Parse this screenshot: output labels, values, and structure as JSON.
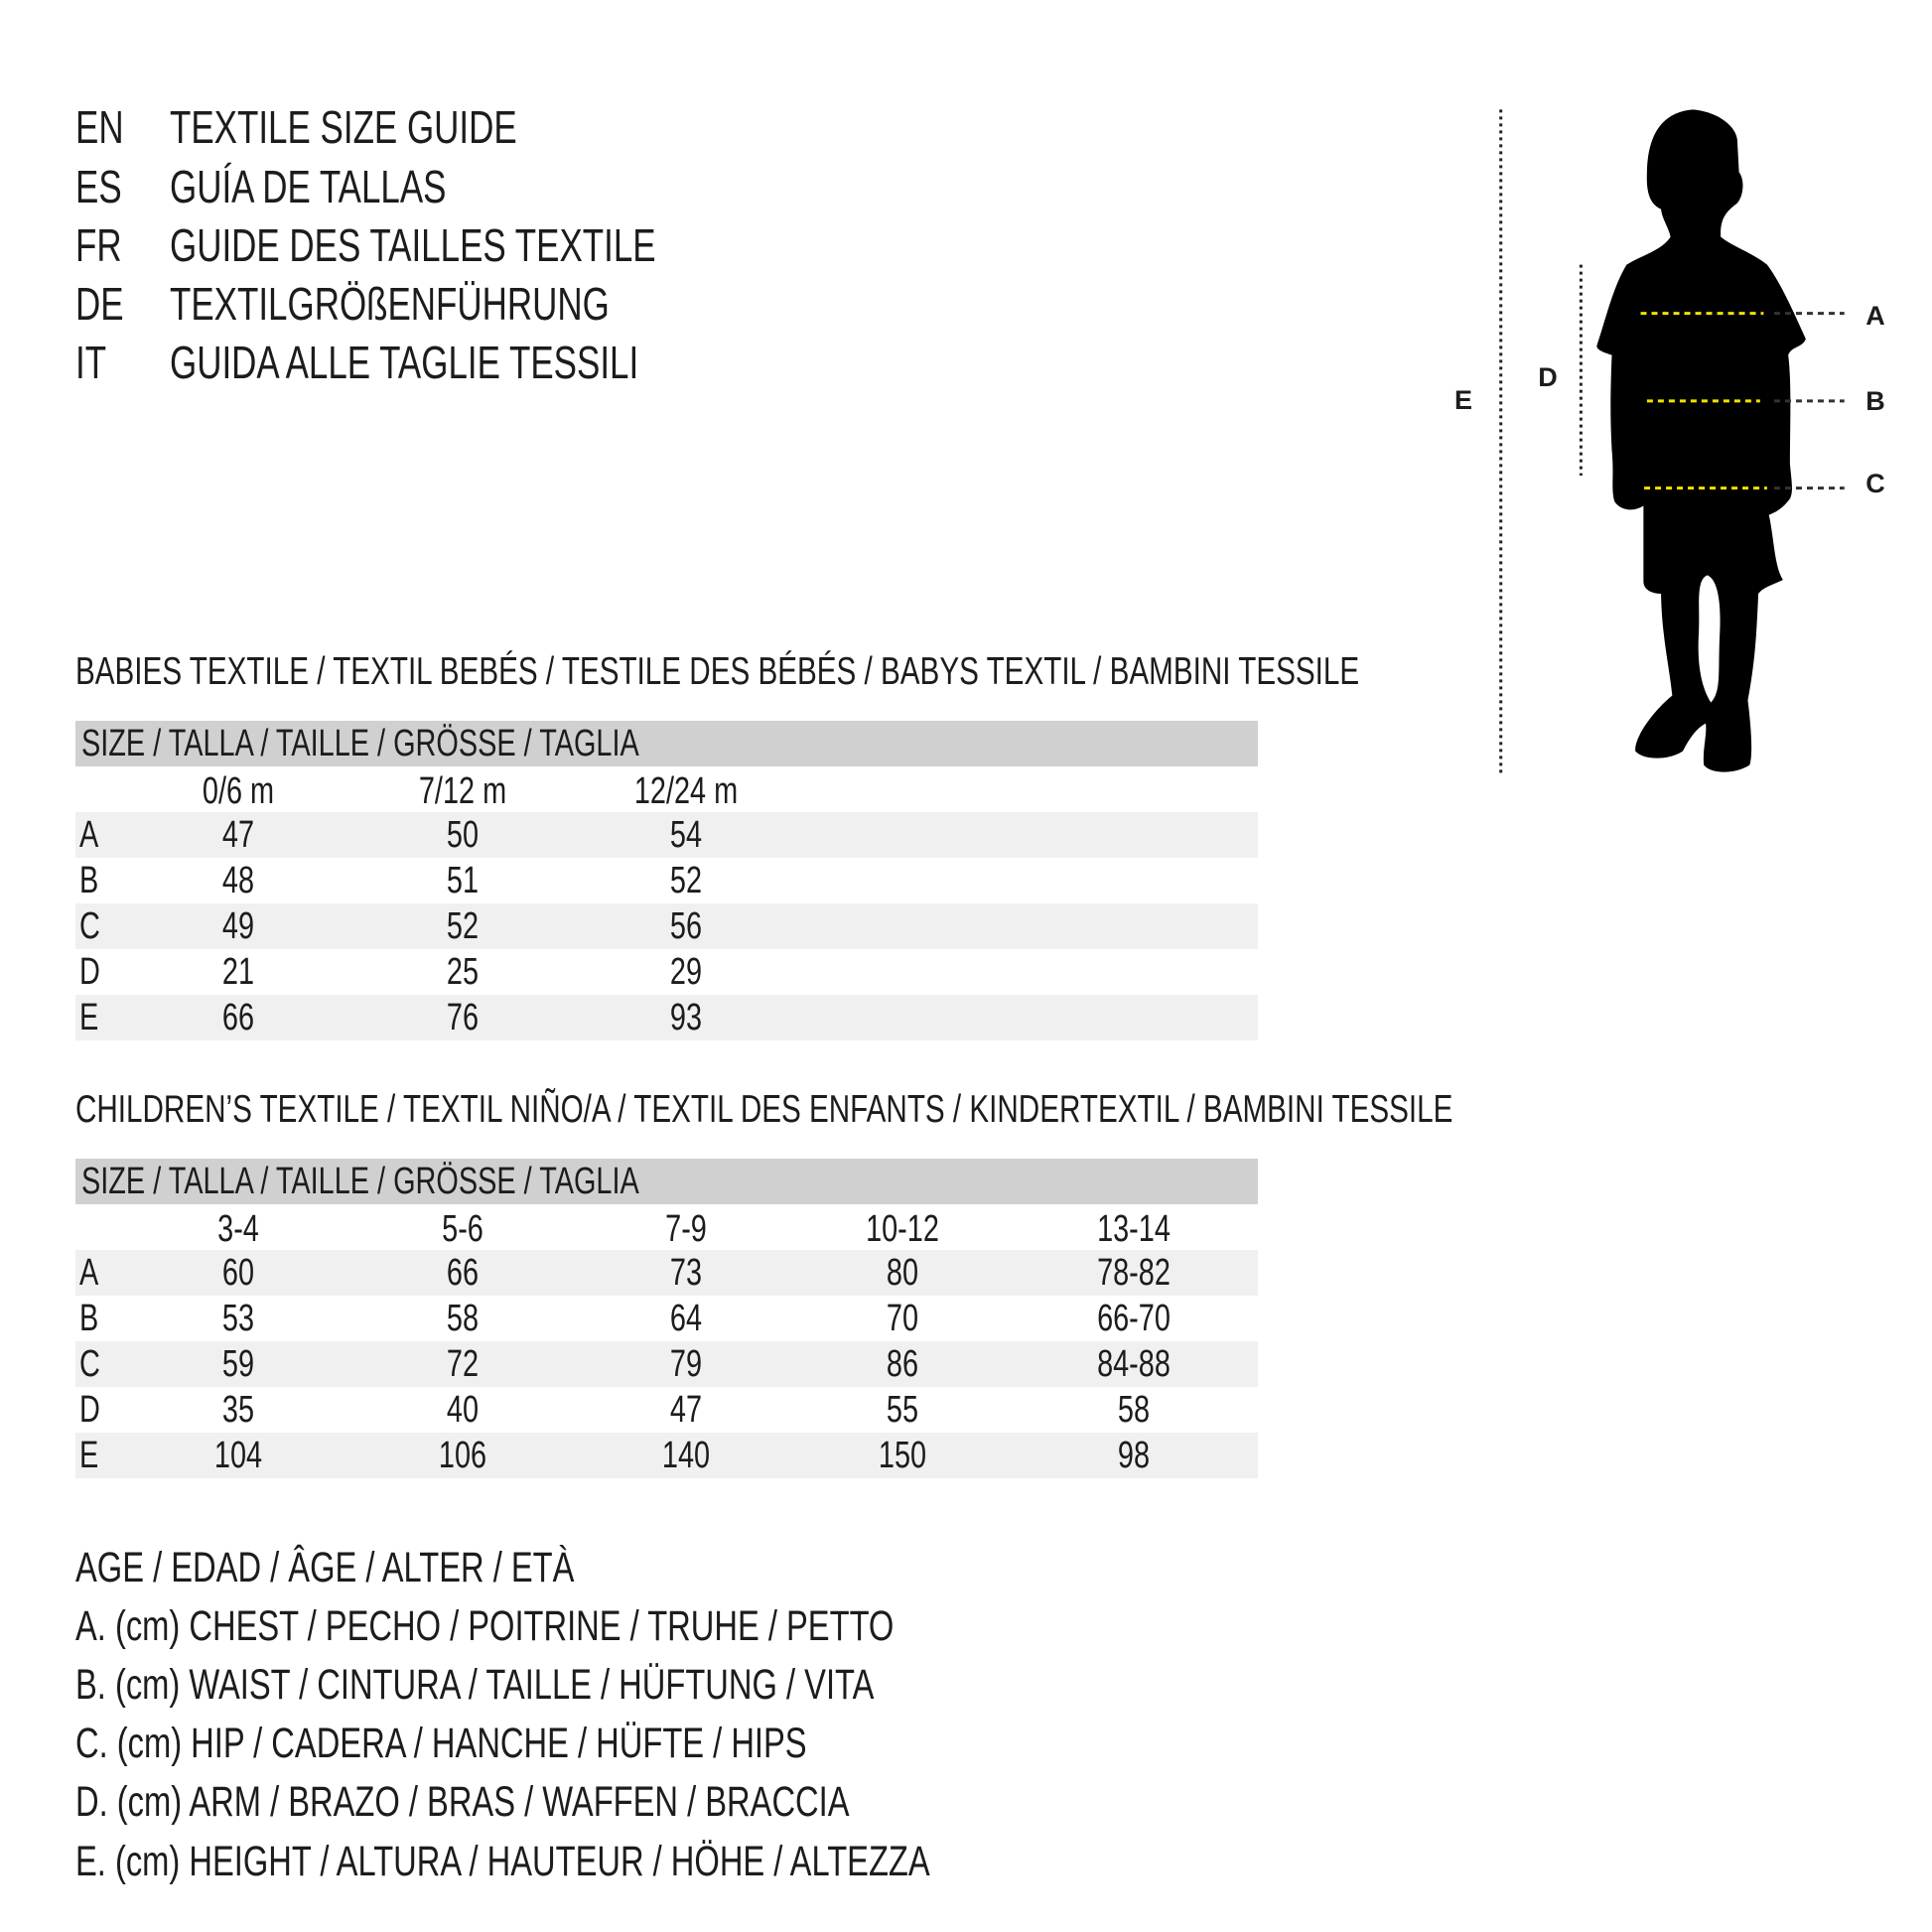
{
  "title_lines": [
    {
      "code": "EN",
      "text": "TEXTILE SIZE GUIDE"
    },
    {
      "code": "ES",
      "text": "GUÍA DE TALLAS"
    },
    {
      "code": "FR",
      "text": "GUIDE DES TAILLES TEXTILE"
    },
    {
      "code": "DE",
      "text": "TEXTILGRÖßENFÜHRUNG"
    },
    {
      "code": "IT",
      "text": "GUIDA ALLE TAGLIE TESSILI"
    }
  ],
  "figure": {
    "labels": {
      "A": "A",
      "B": "B",
      "C": "C",
      "D": "D",
      "E": "E"
    },
    "colors": {
      "silhouette": "#000000",
      "measure_line": "#f2e200",
      "guide_line": "#222222"
    }
  },
  "babies": {
    "heading": "BABIES TEXTILE / TEXTIL BEBÉS / TESTILE DES BÉBÉS / BABYS TEXTIL / BAMBINI TESSILE",
    "size_header": "SIZE / TALLA / TAILLE / GRÖSSE / TAGLIA",
    "columns": [
      "0/6 m",
      "7/12 m",
      "12/24 m"
    ],
    "rows": [
      {
        "label": "A",
        "values": [
          "47",
          "50",
          "54"
        ]
      },
      {
        "label": "B",
        "values": [
          "48",
          "51",
          "52"
        ]
      },
      {
        "label": "C",
        "values": [
          "49",
          "52",
          "56"
        ]
      },
      {
        "label": "D",
        "values": [
          "21",
          "25",
          "29"
        ]
      },
      {
        "label": "E",
        "values": [
          "66",
          "76",
          "93"
        ]
      }
    ]
  },
  "children": {
    "heading": "CHILDREN’S TEXTILE / TEXTIL NIÑO/A / TEXTIL DES ENFANTS / KINDERTEXTIL / BAMBINI TESSILE",
    "size_header": "SIZE / TALLA / TAILLE / GRÖSSE / TAGLIA",
    "columns": [
      "3-4",
      "5-6",
      "7-9",
      "10-12",
      "13-14"
    ],
    "rows": [
      {
        "label": "A",
        "values": [
          "60",
          "66",
          "73",
          "80",
          "78-82"
        ]
      },
      {
        "label": "B",
        "values": [
          "53",
          "58",
          "64",
          "70",
          "66-70"
        ]
      },
      {
        "label": "C",
        "values": [
          "59",
          "72",
          "79",
          "86",
          "84-88"
        ]
      },
      {
        "label": "D",
        "values": [
          "35",
          "40",
          "47",
          "55",
          "58"
        ]
      },
      {
        "label": "E",
        "values": [
          "104",
          "106",
          "140",
          "150",
          "98"
        ]
      }
    ]
  },
  "legend": [
    "AGE / EDAD / ÂGE / ALTER / ETÀ",
    "A. (cm) CHEST / PECHO / POITRINE / TRUHE / PETTO",
    "B. (cm) WAIST / CINTURA / TAILLE / HÜFTUNG / VITA",
    "C. (cm) HIP / CADERA / HANCHE / HÜFTE / HIPS",
    "D. (cm) ARM / BRAZO / BRAS / WAFFEN / BRACCIA",
    "E. (cm) HEIGHT / ALTURA / HAUTEUR / HÖHE / ALTEZZA"
  ]
}
